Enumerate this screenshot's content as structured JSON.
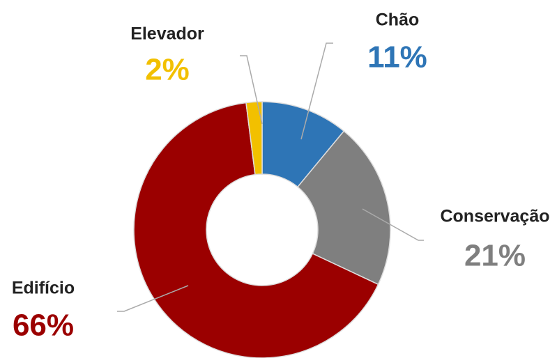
{
  "chart_data": {
    "type": "donut",
    "categories": [
      "Chão",
      "Conservação",
      "Edifício",
      "Elevador"
    ],
    "values": [
      11,
      21,
      66,
      2
    ],
    "value_labels": [
      "11%",
      "21%",
      "66%",
      "2%"
    ],
    "colors": [
      "#2e75b6",
      "#7f7f7f",
      "#9b0000",
      "#f2c000"
    ]
  }
}
